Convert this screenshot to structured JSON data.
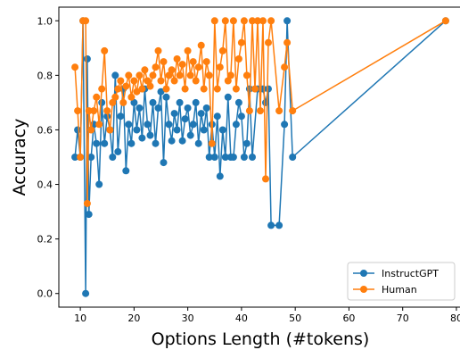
{
  "chart_data": {
    "type": "line",
    "xlabel": "Options Length (#tokens)",
    "ylabel": "Accuracy",
    "xlim": [
      6,
      81
    ],
    "ylim": [
      -0.05,
      1.05
    ],
    "xticks": [
      10,
      20,
      30,
      40,
      50,
      60,
      70,
      80
    ],
    "yticks": [
      0.0,
      0.2,
      0.4,
      0.6,
      0.8,
      1.0
    ],
    "ytick_labels": [
      "0.0",
      "0.2",
      "0.4",
      "0.6",
      "0.8",
      "1.0"
    ],
    "grid": false,
    "legend_position": "bottom-right",
    "series": [
      {
        "name": "InstructGPT",
        "color": "#1f77b4",
        "x": [
          9,
          9.5,
          10,
          10.5,
          11,
          11.3,
          11.6,
          12,
          12.5,
          13,
          13.5,
          14,
          14.5,
          15,
          15.5,
          16,
          16.5,
          17,
          17.5,
          18,
          18.5,
          19,
          19.5,
          20,
          20.5,
          21,
          21.5,
          22,
          22.5,
          23,
          23.5,
          24,
          24.5,
          25,
          25.5,
          26,
          26.5,
          27,
          27.5,
          28,
          28.5,
          29,
          29.5,
          30,
          30.5,
          31,
          31.5,
          32,
          32.5,
          33,
          33.5,
          34,
          34.5,
          35,
          35.5,
          36,
          36.5,
          37,
          37.5,
          38,
          38.5,
          39,
          39.5,
          40,
          40.5,
          41,
          41.5,
          42,
          43,
          44,
          44.5,
          45,
          45.5,
          47,
          48,
          48.5,
          49.5,
          78
        ],
        "y": [
          0.5,
          0.6,
          0.5,
          1.0,
          0.0,
          0.86,
          0.29,
          0.5,
          0.62,
          0.55,
          0.4,
          0.7,
          0.55,
          0.65,
          0.6,
          0.5,
          0.8,
          0.52,
          0.65,
          0.75,
          0.45,
          0.62,
          0.55,
          0.7,
          0.6,
          0.68,
          0.57,
          0.75,
          0.62,
          0.58,
          0.7,
          0.55,
          0.68,
          0.74,
          0.48,
          0.72,
          0.62,
          0.56,
          0.66,
          0.6,
          0.7,
          0.56,
          0.64,
          0.68,
          0.58,
          0.62,
          0.7,
          0.55,
          0.66,
          0.6,
          0.68,
          0.5,
          0.62,
          0.5,
          0.65,
          0.43,
          0.6,
          0.5,
          0.72,
          0.5,
          0.5,
          0.62,
          0.7,
          0.65,
          0.5,
          0.55,
          0.75,
          0.5,
          0.75,
          0.75,
          0.7,
          0.75,
          0.25,
          0.25,
          0.62,
          1.0,
          0.5,
          1.0
        ]
      },
      {
        "name": "Human",
        "color": "#ff7f0e",
        "x": [
          9,
          9.5,
          10,
          10.5,
          11,
          11.3,
          11.6,
          12,
          12.5,
          13,
          13.5,
          14,
          14.5,
          15,
          15.5,
          16,
          16.5,
          17,
          17.5,
          18,
          18.5,
          19,
          19.5,
          20,
          20.5,
          21,
          21.5,
          22,
          22.5,
          23,
          23.5,
          24,
          24.5,
          25,
          25.5,
          26,
          26.5,
          27,
          27.5,
          28,
          28.5,
          29,
          29.5,
          30,
          30.5,
          31,
          31.5,
          32,
          32.5,
          33,
          33.5,
          34,
          34.5,
          35,
          35.5,
          36,
          36.5,
          37,
          37.5,
          38,
          38.5,
          39,
          39.5,
          40,
          40.5,
          41,
          41.5,
          42,
          42.5,
          43,
          43.5,
          44,
          44.5,
          45,
          45.5,
          47,
          48,
          48.5,
          49.5,
          78
        ],
        "y": [
          0.83,
          0.67,
          0.5,
          1.0,
          1.0,
          0.33,
          0.67,
          0.6,
          0.67,
          0.72,
          0.62,
          0.75,
          0.89,
          0.67,
          0.6,
          0.7,
          0.72,
          0.75,
          0.78,
          0.7,
          0.76,
          0.8,
          0.72,
          0.78,
          0.74,
          0.8,
          0.75,
          0.82,
          0.78,
          0.76,
          0.8,
          0.83,
          0.89,
          0.78,
          0.85,
          0.75,
          0.8,
          0.82,
          0.78,
          0.86,
          0.8,
          0.84,
          0.75,
          0.89,
          0.8,
          0.85,
          0.78,
          0.83,
          0.91,
          0.75,
          0.85,
          0.8,
          0.55,
          1.0,
          0.75,
          0.83,
          0.89,
          1.0,
          0.78,
          0.8,
          1.0,
          0.75,
          0.86,
          0.92,
          1.0,
          0.8,
          0.67,
          1.0,
          0.75,
          1.0,
          0.67,
          1.0,
          0.42,
          0.92,
          1.0,
          0.67,
          0.83,
          0.92,
          0.67,
          1.0
        ]
      }
    ]
  }
}
